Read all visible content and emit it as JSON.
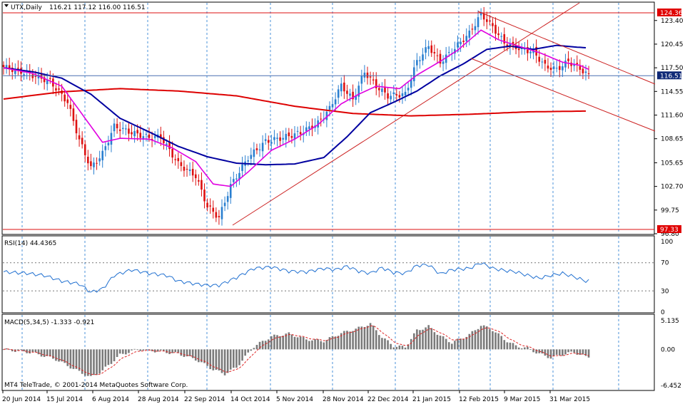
{
  "header": {
    "symbol": "UTX,Daily",
    "ohlc": "116.21 117.12 116.00 116.51"
  },
  "colors": {
    "bull": "#2a7fd0",
    "bear": "#dd1111",
    "ma_fast": "#e000e0",
    "ma_mid": "#0000a0",
    "ma_slow": "#dd0000",
    "trend": "#cc2222",
    "rsi": "#1f6fd0",
    "macd_bar": "#7a7a7a",
    "macd_signal": "#dd2222",
    "grid": "#4a90d9"
  },
  "price_axis": {
    "ticks": [
      "123.40",
      "120.45",
      "117.50",
      "114.55",
      "111.60",
      "108.65",
      "105.65",
      "102.70",
      "99.75",
      "96.80"
    ],
    "range": [
      96.8,
      125.6
    ],
    "level_high": "124.36",
    "level_current": "116.51",
    "level_low": "97.33"
  },
  "rsi": {
    "label": "RSI(14) 44.4365",
    "ticks": [
      "100",
      "70",
      "30",
      "0"
    ],
    "last": 44.4365
  },
  "macd": {
    "label": "MACD(5,34,5) -1.333 -0.921",
    "ticks": [
      "5.135",
      "0.00",
      "-6.452"
    ],
    "range": [
      -6.452,
      5.135
    ]
  },
  "watermark": "MT4 TeleTrade, © 2001-2014 MetaQuotes Software Corp.",
  "time_axis": [
    "20 Jun 2014",
    "15 Jul 2014",
    "6 Aug 2014",
    "28 Aug 2014",
    "22 Sep 2014",
    "14 Oct 2014",
    "5 Nov 2014",
    "28 Nov 2014",
    "22 Dec 2014",
    "21 Jan 2015",
    "12 Feb 2015",
    "9 Mar 2015",
    "31 Mar 2015"
  ],
  "chart_data": {
    "type": "line",
    "title": "UTX,Daily",
    "close_anchors": [
      [
        0,
        117.6
      ],
      [
        8,
        116.8
      ],
      [
        16,
        115.8
      ],
      [
        22,
        113.2
      ],
      [
        26,
        108.5
      ],
      [
        30,
        105.0
      ],
      [
        34,
        106.8
      ],
      [
        38,
        110.2
      ],
      [
        44,
        109.4
      ],
      [
        50,
        108.8
      ],
      [
        54,
        108.9
      ],
      [
        60,
        105.5
      ],
      [
        66,
        104.0
      ],
      [
        70,
        100.2
      ],
      [
        74,
        98.8
      ],
      [
        78,
        102.8
      ],
      [
        84,
        106.3
      ],
      [
        90,
        108.3
      ],
      [
        96,
        108.8
      ],
      [
        102,
        109.4
      ],
      [
        108,
        110.6
      ],
      [
        112,
        112.4
      ],
      [
        116,
        115.3
      ],
      [
        120,
        113.5
      ],
      [
        124,
        117.0
      ],
      [
        128,
        115.2
      ],
      [
        132,
        114.0
      ],
      [
        138,
        114.2
      ],
      [
        142,
        118.3
      ],
      [
        146,
        120.2
      ],
      [
        150,
        118.2
      ],
      [
        154,
        119.6
      ],
      [
        160,
        121.8
      ],
      [
        164,
        124.2
      ],
      [
        168,
        122.6
      ],
      [
        172,
        120.6
      ],
      [
        178,
        119.8
      ],
      [
        182,
        119.5
      ],
      [
        186,
        117.7
      ],
      [
        190,
        117.3
      ],
      [
        194,
        118.3
      ],
      [
        198,
        117.4
      ],
      [
        201,
        116.5
      ]
    ],
    "ma_fast_anchors": [
      [
        0,
        117.5
      ],
      [
        10,
        116.8
      ],
      [
        20,
        115.2
      ],
      [
        28,
        111.2
      ],
      [
        34,
        108.2
      ],
      [
        40,
        108.7
      ],
      [
        50,
        108.6
      ],
      [
        58,
        107.5
      ],
      [
        66,
        105.8
      ],
      [
        72,
        103.0
      ],
      [
        78,
        102.7
      ],
      [
        84,
        104.5
      ],
      [
        92,
        107.2
      ],
      [
        100,
        108.6
      ],
      [
        108,
        110.4
      ],
      [
        116,
        113.0
      ],
      [
        122,
        114.2
      ],
      [
        128,
        115.2
      ],
      [
        136,
        114.9
      ],
      [
        142,
        116.6
      ],
      [
        150,
        118.3
      ],
      [
        156,
        119.7
      ],
      [
        164,
        122.2
      ],
      [
        170,
        121.0
      ],
      [
        176,
        120.3
      ],
      [
        184,
        119.4
      ],
      [
        192,
        118.2
      ],
      [
        198,
        117.8
      ],
      [
        201,
        117.3
      ]
    ],
    "ma_mid_anchors": [
      [
        0,
        117.5
      ],
      [
        10,
        117.0
      ],
      [
        20,
        116.2
      ],
      [
        30,
        114.2
      ],
      [
        40,
        111.2
      ],
      [
        50,
        109.5
      ],
      [
        60,
        107.7
      ],
      [
        70,
        106.4
      ],
      [
        80,
        105.6
      ],
      [
        90,
        105.4
      ],
      [
        100,
        105.5
      ],
      [
        110,
        106.3
      ],
      [
        118,
        108.9
      ],
      [
        126,
        111.9
      ],
      [
        134,
        113.2
      ],
      [
        142,
        114.6
      ],
      [
        150,
        116.5
      ],
      [
        158,
        118.0
      ],
      [
        166,
        119.8
      ],
      [
        174,
        120.2
      ],
      [
        182,
        119.8
      ],
      [
        190,
        120.3
      ],
      [
        196,
        120.1
      ],
      [
        200,
        120.0
      ]
    ],
    "ma_slow_anchors": [
      [
        0,
        113.6
      ],
      [
        20,
        114.5
      ],
      [
        40,
        114.9
      ],
      [
        60,
        114.6
      ],
      [
        80,
        114.0
      ],
      [
        100,
        112.7
      ],
      [
        120,
        111.8
      ],
      [
        140,
        111.5
      ],
      [
        160,
        111.7
      ],
      [
        180,
        112.0
      ],
      [
        200,
        112.1
      ]
    ],
    "rsi_anchors": [
      [
        0,
        57
      ],
      [
        8,
        55
      ],
      [
        14,
        52
      ],
      [
        20,
        44
      ],
      [
        26,
        40
      ],
      [
        30,
        28
      ],
      [
        34,
        33
      ],
      [
        38,
        52
      ],
      [
        44,
        60
      ],
      [
        50,
        55
      ],
      [
        56,
        52
      ],
      [
        60,
        44
      ],
      [
        66,
        40
      ],
      [
        70,
        38
      ],
      [
        74,
        38
      ],
      [
        80,
        49
      ],
      [
        86,
        62
      ],
      [
        92,
        64
      ],
      [
        98,
        58
      ],
      [
        104,
        57
      ],
      [
        110,
        62
      ],
      [
        114,
        60
      ],
      [
        118,
        65
      ],
      [
        122,
        58
      ],
      [
        126,
        55
      ],
      [
        130,
        63
      ],
      [
        134,
        56
      ],
      [
        138,
        55
      ],
      [
        142,
        66
      ],
      [
        146,
        67
      ],
      [
        150,
        54
      ],
      [
        154,
        60
      ],
      [
        160,
        62
      ],
      [
        164,
        70
      ],
      [
        168,
        62
      ],
      [
        172,
        59
      ],
      [
        176,
        57
      ],
      [
        180,
        52
      ],
      [
        184,
        48
      ],
      [
        188,
        52
      ],
      [
        192,
        55
      ],
      [
        196,
        50
      ],
      [
        200,
        44
      ]
    ],
    "macd_anchors": [
      [
        0,
        0.0
      ],
      [
        10,
        -0.6
      ],
      [
        18,
        -1.8
      ],
      [
        26,
        -4.0
      ],
      [
        30,
        -5.0
      ],
      [
        34,
        -3.8
      ],
      [
        40,
        -1.0
      ],
      [
        46,
        0.0
      ],
      [
        54,
        -0.4
      ],
      [
        60,
        -0.8
      ],
      [
        66,
        -1.8
      ],
      [
        72,
        -3.6
      ],
      [
        76,
        -4.4
      ],
      [
        80,
        -3.2
      ],
      [
        86,
        0.5
      ],
      [
        92,
        2.3
      ],
      [
        98,
        2.8
      ],
      [
        104,
        1.8
      ],
      [
        110,
        1.5
      ],
      [
        116,
        2.9
      ],
      [
        122,
        3.8
      ],
      [
        126,
        4.6
      ],
      [
        130,
        2.2
      ],
      [
        134,
        0.6
      ],
      [
        138,
        0.4
      ],
      [
        142,
        3.4
      ],
      [
        146,
        4.1
      ],
      [
        150,
        2.4
      ],
      [
        154,
        1.2
      ],
      [
        160,
        2.6
      ],
      [
        164,
        4.3
      ],
      [
        168,
        3.5
      ],
      [
        172,
        1.8
      ],
      [
        176,
        0.6
      ],
      [
        180,
        0.2
      ],
      [
        184,
        -0.8
      ],
      [
        188,
        -1.5
      ],
      [
        192,
        -0.9
      ],
      [
        196,
        -0.5
      ],
      [
        200,
        -1.333
      ]
    ],
    "ylim": [
      96.8,
      125.6
    ]
  }
}
